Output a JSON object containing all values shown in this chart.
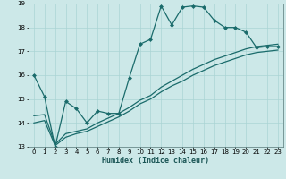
{
  "xlabel": "Humidex (Indice chaleur)",
  "ylabel": "",
  "xlim": [
    -0.5,
    23.5
  ],
  "ylim": [
    13,
    19
  ],
  "yticks": [
    13,
    14,
    15,
    16,
    17,
    18,
    19
  ],
  "xticks": [
    0,
    1,
    2,
    3,
    4,
    5,
    6,
    7,
    8,
    9,
    10,
    11,
    12,
    13,
    14,
    15,
    16,
    17,
    18,
    19,
    20,
    21,
    22,
    23
  ],
  "bg_color": "#cce8e8",
  "line_color": "#1a6b6b",
  "series": [
    {
      "x": [
        0,
        1,
        2,
        3,
        4,
        5,
        6,
        7,
        8,
        9,
        10,
        11,
        12,
        13,
        14,
        15,
        16,
        17,
        18,
        19,
        20,
        21,
        22,
        23
      ],
      "y": [
        16.0,
        15.1,
        13.0,
        14.9,
        14.6,
        14.0,
        14.5,
        14.4,
        14.4,
        15.9,
        17.3,
        17.5,
        18.9,
        18.1,
        18.85,
        18.9,
        18.85,
        18.3,
        18.0,
        18.0,
        17.8,
        17.15,
        17.2,
        17.2
      ],
      "markers": true
    },
    {
      "x": [
        0,
        1,
        2,
        3,
        4,
        5,
        6,
        7,
        8,
        9,
        10,
        11,
        12,
        13,
        14,
        15,
        16,
        17,
        18,
        19,
        20,
        21,
        22,
        23
      ],
      "y": [
        14.3,
        14.35,
        13.1,
        13.55,
        13.65,
        13.75,
        14.0,
        14.2,
        14.4,
        14.65,
        14.95,
        15.15,
        15.5,
        15.75,
        16.0,
        16.25,
        16.45,
        16.65,
        16.8,
        16.95,
        17.1,
        17.2,
        17.25,
        17.3
      ],
      "markers": false
    },
    {
      "x": [
        0,
        1,
        2,
        3,
        4,
        5,
        6,
        7,
        8,
        9,
        10,
        11,
        12,
        13,
        14,
        15,
        16,
        17,
        18,
        19,
        20,
        21,
        22,
        23
      ],
      "y": [
        14.0,
        14.1,
        13.05,
        13.4,
        13.55,
        13.65,
        13.85,
        14.05,
        14.25,
        14.5,
        14.8,
        15.0,
        15.3,
        15.55,
        15.75,
        16.0,
        16.2,
        16.4,
        16.55,
        16.7,
        16.85,
        16.95,
        17.0,
        17.05
      ],
      "markers": false
    }
  ]
}
